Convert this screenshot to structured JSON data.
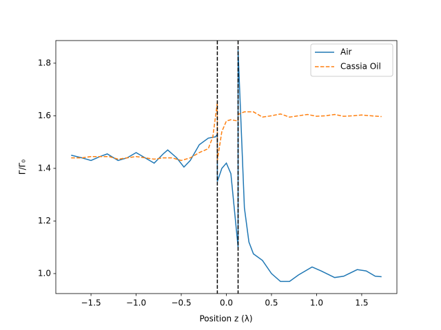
{
  "chart_data": {
    "type": "line",
    "xlabel": "Position z (λ)",
    "ylabel": "Γ/Γ₀",
    "xlim": [
      -1.89,
      1.89
    ],
    "ylim": [
      0.924,
      1.886
    ],
    "xticks": [
      {
        "value": -1.5,
        "label": "−1.5"
      },
      {
        "value": -1.0,
        "label": "−1.0"
      },
      {
        "value": -0.5,
        "label": "−0.5"
      },
      {
        "value": 0,
        "label": "0.0"
      },
      0.5,
      {
        "value": 1.0,
        "label": "1.0"
      },
      1.5
    ],
    "yticks": [
      {
        "value": 1.0,
        "label": "1.0"
      },
      1.2,
      1.4,
      1.6,
      1.8
    ],
    "legend": "upper right",
    "vlines": [
      -0.1,
      0.13
    ],
    "vline_color": "#000000",
    "series": [
      {
        "name": "Air",
        "color": "#1f77b4",
        "style": "solid",
        "x": [
          -1.72,
          -1.6,
          -1.5,
          -1.4,
          -1.32,
          -1.2,
          -1.1,
          -1.0,
          -0.9,
          -0.8,
          -0.7,
          -0.65,
          -0.55,
          -0.47,
          -0.4,
          -0.3,
          -0.2,
          -0.12,
          -0.1,
          -0.1,
          -0.05,
          0.0,
          0.05,
          0.13,
          0.13,
          0.2,
          0.25,
          0.3,
          0.4,
          0.5,
          0.6,
          0.7,
          0.8,
          0.95,
          1.05,
          1.2,
          1.3,
          1.45,
          1.55,
          1.65,
          1.72
        ],
        "values": [
          1.45,
          1.44,
          1.43,
          1.445,
          1.455,
          1.43,
          1.44,
          1.46,
          1.44,
          1.42,
          1.455,
          1.47,
          1.44,
          1.405,
          1.43,
          1.49,
          1.515,
          1.52,
          1.53,
          1.35,
          1.4,
          1.42,
          1.38,
          1.1,
          1.85,
          1.25,
          1.12,
          1.075,
          1.05,
          1.0,
          0.97,
          0.97,
          0.995,
          1.025,
          1.01,
          0.985,
          0.99,
          1.015,
          1.01,
          0.99,
          0.988
        ]
      },
      {
        "name": "Cassia Oil",
        "color": "#ff7f0e",
        "style": "dashed",
        "x": [
          -1.72,
          -1.6,
          -1.5,
          -1.4,
          -1.3,
          -1.2,
          -1.1,
          -1.0,
          -0.9,
          -0.8,
          -0.7,
          -0.6,
          -0.5,
          -0.4,
          -0.3,
          -0.2,
          -0.15,
          -0.1,
          -0.1,
          -0.05,
          0.0,
          0.05,
          0.13,
          0.13,
          0.2,
          0.3,
          0.4,
          0.5,
          0.6,
          0.7,
          0.8,
          0.9,
          1.0,
          1.1,
          1.2,
          1.3,
          1.4,
          1.5,
          1.6,
          1.72
        ],
        "values": [
          1.44,
          1.44,
          1.445,
          1.445,
          1.445,
          1.435,
          1.44,
          1.445,
          1.44,
          1.435,
          1.44,
          1.44,
          1.43,
          1.44,
          1.46,
          1.475,
          1.52,
          1.65,
          1.43,
          1.54,
          1.58,
          1.585,
          1.58,
          1.605,
          1.615,
          1.615,
          1.595,
          1.6,
          1.607,
          1.595,
          1.6,
          1.605,
          1.598,
          1.6,
          1.605,
          1.598,
          1.6,
          1.603,
          1.6,
          1.597
        ]
      }
    ]
  }
}
